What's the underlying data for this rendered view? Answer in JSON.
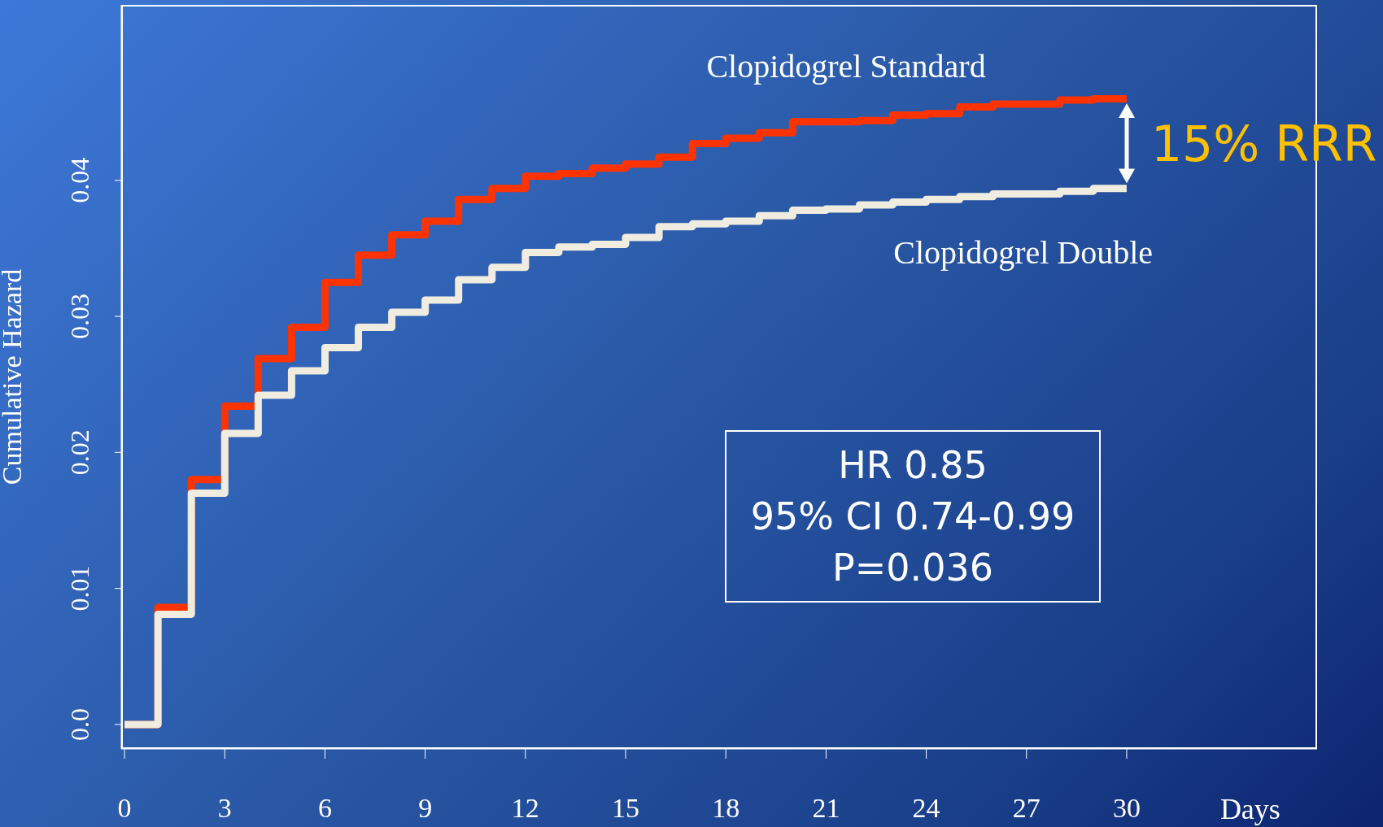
{
  "chart_data": {
    "type": "step",
    "ylabel": "Cumulative Hazard",
    "xlabel": "Days",
    "x": [
      0,
      1,
      2,
      3,
      4,
      5,
      6,
      7,
      8,
      9,
      10,
      11,
      12,
      13,
      14,
      15,
      16,
      17,
      18,
      19,
      20,
      21,
      22,
      23,
      24,
      25,
      26,
      27,
      28,
      29,
      30
    ],
    "series": [
      {
        "name": "Clopidogrel Standard",
        "color": "#ff3300",
        "values": [
          0,
          0.0086,
          0.018,
          0.0234,
          0.0269,
          0.0292,
          0.0325,
          0.0345,
          0.036,
          0.037,
          0.0386,
          0.0394,
          0.0403,
          0.0405,
          0.0409,
          0.0412,
          0.0417,
          0.0427,
          0.0431,
          0.0435,
          0.0443,
          0.0443,
          0.0444,
          0.0448,
          0.0449,
          0.0454,
          0.0456,
          0.0456,
          0.0459,
          0.046,
          0.046
        ]
      },
      {
        "name": "Clopidogrel Double",
        "color": "#f0ece0",
        "values": [
          0,
          0.0081,
          0.017,
          0.0214,
          0.0242,
          0.026,
          0.0277,
          0.0292,
          0.0303,
          0.0312,
          0.0327,
          0.0336,
          0.0347,
          0.0351,
          0.0353,
          0.0358,
          0.0366,
          0.0368,
          0.037,
          0.0374,
          0.0378,
          0.0379,
          0.0382,
          0.0384,
          0.0386,
          0.0388,
          0.039,
          0.039,
          0.0392,
          0.0394,
          0.0394
        ]
      }
    ],
    "xlim": [
      -0.1,
      35.7
    ],
    "xticks": [
      0,
      3,
      6,
      9,
      12,
      15,
      18,
      21,
      24,
      27,
      30
    ],
    "ylim": [
      -0.0018,
      0.0529
    ],
    "yticks": [
      {
        "value": 0,
        "label": "0.0"
      },
      0.01,
      0.02,
      0.03,
      0.04
    ],
    "annotations": [
      "HR 0.85",
      "95% CI 0.74-0.99",
      "P=0.036",
      "15% RRR"
    ],
    "marker": "none",
    "line_style": "solid"
  }
}
